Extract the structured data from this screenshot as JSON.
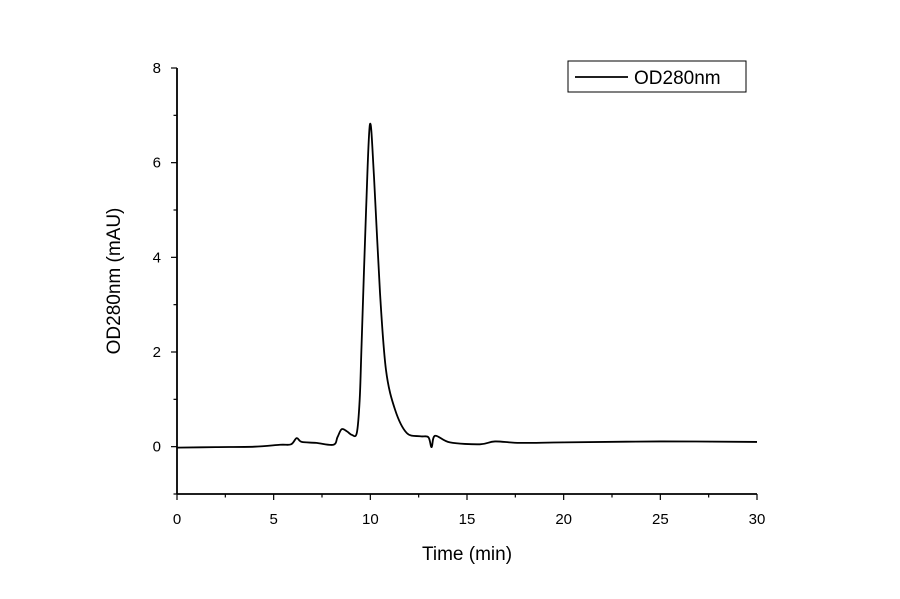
{
  "chart_data": {
    "type": "line",
    "title": "",
    "xlabel": "Time (min)",
    "ylabel": "OD280nm (mAU)",
    "xlim": [
      0,
      30
    ],
    "ylim": [
      -1,
      8
    ],
    "xticks": [
      0,
      5,
      10,
      15,
      20,
      25,
      30
    ],
    "yticks": [
      0,
      2,
      4,
      6,
      8
    ],
    "grid": false,
    "legend_position": "top-right",
    "line_color": "#000000",
    "series": [
      {
        "name": "OD280nm",
        "x": [
          0,
          2,
          4,
          5.33,
          5.9,
          6.19,
          6.45,
          7.2,
          8.09,
          8.3,
          8.52,
          8.8,
          9.04,
          9.3,
          9.45,
          9.55,
          9.78,
          9.98,
          10.19,
          10.5,
          10.81,
          11.28,
          11.88,
          12.57,
          13.0,
          13.17,
          13.35,
          14.12,
          15.67,
          16.45,
          17.74,
          20,
          25,
          30
        ],
        "y": [
          -0.02,
          -0.01,
          0.0,
          0.04,
          0.05,
          0.18,
          0.1,
          0.08,
          0.04,
          0.2,
          0.37,
          0.32,
          0.25,
          0.29,
          1.0,
          2.19,
          5.0,
          6.81,
          5.7,
          3.25,
          1.62,
          0.78,
          0.29,
          0.22,
          0.2,
          -0.01,
          0.23,
          0.09,
          0.05,
          0.11,
          0.08,
          0.09,
          0.11,
          0.1
        ]
      }
    ]
  }
}
